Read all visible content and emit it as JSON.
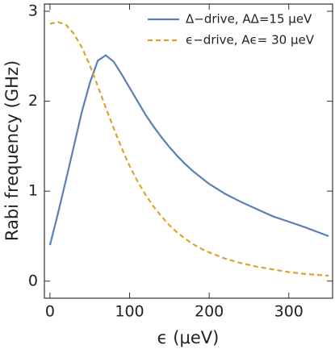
{
  "chart_data": {
    "type": "line",
    "xlabel": "ϵ (μeV)",
    "ylabel": "Rabi frequency (GHz)",
    "x": [
      0,
      10,
      20,
      30,
      40,
      50,
      60,
      70,
      80,
      90,
      100,
      110,
      120,
      130,
      140,
      150,
      160,
      170,
      180,
      190,
      200,
      220,
      240,
      260,
      280,
      300,
      320,
      350
    ],
    "series": [
      {
        "name": "Δ−drive, AΔ=15 μeV",
        "color": "#5b7fb5",
        "dash": false,
        "values": [
          0.4,
          0.75,
          1.12,
          1.5,
          1.88,
          2.2,
          2.45,
          2.51,
          2.44,
          2.3,
          2.15,
          2.0,
          1.85,
          1.72,
          1.6,
          1.49,
          1.39,
          1.3,
          1.22,
          1.15,
          1.08,
          0.97,
          0.88,
          0.8,
          0.72,
          0.66,
          0.6,
          0.5
        ]
      },
      {
        "name": "ϵ−drive, Aϵ= 30 μeV",
        "color": "#e0a030",
        "dash": true,
        "values": [
          2.86,
          2.88,
          2.85,
          2.75,
          2.6,
          2.4,
          2.17,
          1.93,
          1.7,
          1.48,
          1.28,
          1.11,
          0.96,
          0.83,
          0.72,
          0.62,
          0.54,
          0.47,
          0.41,
          0.36,
          0.32,
          0.25,
          0.2,
          0.16,
          0.13,
          0.1,
          0.08,
          0.06
        ]
      }
    ],
    "xlim": [
      -7,
      355
    ],
    "ylim": [
      -0.19,
      3.08
    ],
    "xticks": [
      0,
      100,
      200,
      300
    ],
    "yticks": [
      0,
      1,
      2,
      3
    ],
    "legend": "upper right"
  }
}
